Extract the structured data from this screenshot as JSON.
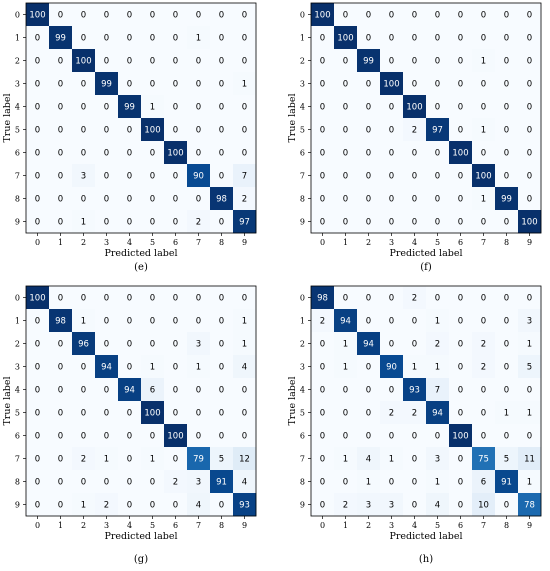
{
  "chart_data": [
    {
      "type": "heatmap",
      "panel_label": "(e)",
      "xlabel": "Predicted label",
      "ylabel": "True label",
      "x_ticks": [
        "0",
        "1",
        "2",
        "3",
        "4",
        "5",
        "6",
        "7",
        "8",
        "9"
      ],
      "y_ticks": [
        "0",
        "1",
        "2",
        "3",
        "4",
        "5",
        "6",
        "7",
        "8",
        "9"
      ],
      "colormap": "Blues",
      "value_range": [
        0,
        100
      ],
      "matrix": [
        [
          100,
          0,
          0,
          0,
          0,
          0,
          0,
          0,
          0,
          0
        ],
        [
          0,
          99,
          0,
          0,
          0,
          0,
          0,
          1,
          0,
          0
        ],
        [
          0,
          0,
          100,
          0,
          0,
          0,
          0,
          0,
          0,
          0
        ],
        [
          0,
          0,
          0,
          99,
          0,
          0,
          0,
          0,
          0,
          1
        ],
        [
          0,
          0,
          0,
          0,
          99,
          1,
          0,
          0,
          0,
          0
        ],
        [
          0,
          0,
          0,
          0,
          0,
          100,
          0,
          0,
          0,
          0
        ],
        [
          0,
          0,
          0,
          0,
          0,
          0,
          100,
          0,
          0,
          0
        ],
        [
          0,
          0,
          3,
          0,
          0,
          0,
          0,
          90,
          0,
          7
        ],
        [
          0,
          0,
          0,
          0,
          0,
          0,
          0,
          0,
          98,
          2
        ],
        [
          0,
          0,
          1,
          0,
          0,
          0,
          0,
          2,
          0,
          97
        ]
      ]
    },
    {
      "type": "heatmap",
      "panel_label": "(f)",
      "xlabel": "Predicted label",
      "ylabel": "True label",
      "x_ticks": [
        "0",
        "1",
        "2",
        "3",
        "4",
        "5",
        "6",
        "7",
        "8",
        "9"
      ],
      "y_ticks": [
        "0",
        "1",
        "2",
        "3",
        "4",
        "5",
        "6",
        "7",
        "8",
        "9"
      ],
      "colormap": "Blues",
      "value_range": [
        0,
        100
      ],
      "matrix": [
        [
          100,
          0,
          0,
          0,
          0,
          0,
          0,
          0,
          0,
          0
        ],
        [
          0,
          100,
          0,
          0,
          0,
          0,
          0,
          0,
          0,
          0
        ],
        [
          0,
          0,
          99,
          0,
          0,
          0,
          0,
          1,
          0,
          0
        ],
        [
          0,
          0,
          0,
          100,
          0,
          0,
          0,
          0,
          0,
          0
        ],
        [
          0,
          0,
          0,
          0,
          100,
          0,
          0,
          0,
          0,
          0
        ],
        [
          0,
          0,
          0,
          0,
          2,
          97,
          0,
          1,
          0,
          0
        ],
        [
          0,
          0,
          0,
          0,
          0,
          0,
          100,
          0,
          0,
          0
        ],
        [
          0,
          0,
          0,
          0,
          0,
          0,
          0,
          100,
          0,
          0
        ],
        [
          0,
          0,
          0,
          0,
          0,
          0,
          0,
          1,
          99,
          0
        ],
        [
          0,
          0,
          0,
          0,
          0,
          0,
          0,
          0,
          0,
          100
        ]
      ]
    },
    {
      "type": "heatmap",
      "panel_label": "(g)",
      "xlabel": "Predicted label",
      "ylabel": "True label",
      "x_ticks": [
        "0",
        "1",
        "2",
        "3",
        "4",
        "5",
        "6",
        "7",
        "8",
        "9"
      ],
      "y_ticks": [
        "0",
        "1",
        "2",
        "3",
        "4",
        "5",
        "6",
        "7",
        "8",
        "9"
      ],
      "colormap": "Blues",
      "value_range": [
        0,
        100
      ],
      "matrix": [
        [
          100,
          0,
          0,
          0,
          0,
          0,
          0,
          0,
          0,
          0
        ],
        [
          0,
          98,
          1,
          0,
          0,
          0,
          0,
          0,
          0,
          1
        ],
        [
          0,
          0,
          96,
          0,
          0,
          0,
          0,
          3,
          0,
          1
        ],
        [
          0,
          0,
          0,
          94,
          0,
          1,
          0,
          1,
          0,
          4
        ],
        [
          0,
          0,
          0,
          0,
          94,
          6,
          0,
          0,
          0,
          0
        ],
        [
          0,
          0,
          0,
          0,
          0,
          100,
          0,
          0,
          0,
          0
        ],
        [
          0,
          0,
          0,
          0,
          0,
          0,
          100,
          0,
          0,
          0
        ],
        [
          0,
          0,
          2,
          1,
          0,
          1,
          0,
          79,
          5,
          12
        ],
        [
          0,
          0,
          0,
          0,
          0,
          0,
          2,
          3,
          91,
          4
        ],
        [
          0,
          0,
          1,
          2,
          0,
          0,
          0,
          4,
          0,
          93
        ]
      ]
    },
    {
      "type": "heatmap",
      "panel_label": "(h)",
      "xlabel": "Predicted label",
      "ylabel": "True label",
      "x_ticks": [
        "0",
        "1",
        "2",
        "3",
        "4",
        "5",
        "6",
        "7",
        "8",
        "9"
      ],
      "y_ticks": [
        "0",
        "1",
        "2",
        "3",
        "4",
        "5",
        "6",
        "7",
        "8",
        "9"
      ],
      "colormap": "Blues",
      "value_range": [
        0,
        100
      ],
      "matrix": [
        [
          98,
          0,
          0,
          0,
          2,
          0,
          0,
          0,
          0,
          0
        ],
        [
          2,
          94,
          0,
          0,
          0,
          1,
          0,
          0,
          0,
          3
        ],
        [
          0,
          1,
          94,
          0,
          0,
          2,
          0,
          2,
          0,
          1
        ],
        [
          0,
          1,
          0,
          90,
          1,
          1,
          0,
          2,
          0,
          5
        ],
        [
          0,
          0,
          0,
          0,
          93,
          7,
          0,
          0,
          0,
          0
        ],
        [
          0,
          0,
          0,
          2,
          2,
          94,
          0,
          0,
          1,
          1
        ],
        [
          0,
          0,
          0,
          0,
          0,
          0,
          100,
          0,
          0,
          0
        ],
        [
          0,
          1,
          4,
          1,
          0,
          3,
          0,
          75,
          5,
          11
        ],
        [
          0,
          0,
          1,
          0,
          0,
          1,
          0,
          6,
          91,
          1
        ],
        [
          0,
          2,
          3,
          3,
          0,
          4,
          0,
          10,
          0,
          78
        ]
      ]
    }
  ]
}
